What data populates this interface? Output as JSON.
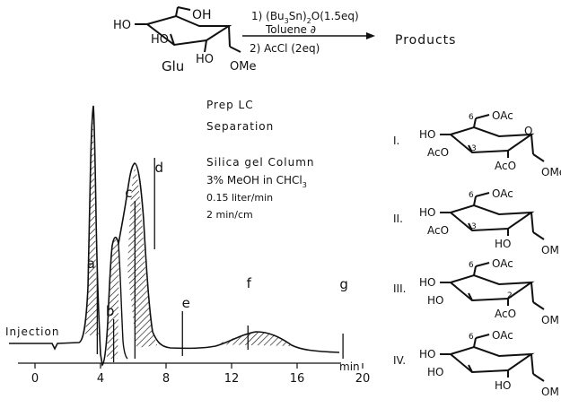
{
  "reaction": {
    "reactant_label": "Glu",
    "reactant_groups": {
      "oh6": "OH",
      "oh4": "HO",
      "oh3": "HO",
      "oh2": "HO",
      "ome": "OMe"
    },
    "step1_prefix": "1) (Bu",
    "step1_sub1": "3",
    "step1_mid": "Sn)",
    "step1_sub2": "2",
    "step1_suffix": "O(1.5eq)",
    "step1_solvent": "Toluene ∂",
    "step2": "2) AcCl (2eq)",
    "products_label": "Products"
  },
  "separation_notes": {
    "line1": "Prep LC",
    "line2": "Separation",
    "line3": "Silica gel Column",
    "line4_prefix": "3% MeOH in CHCl",
    "line4_sub": "3",
    "line5": "0.15 liter/min",
    "line6": "2 min/cm"
  },
  "chromatogram": {
    "injection_label": "Injection",
    "x_unit": "min",
    "x_ticks": [
      "0",
      "4",
      "8",
      "12",
      "16",
      "20"
    ],
    "x_tick_values": [
      0,
      4,
      8,
      12,
      16,
      20
    ],
    "x_range": [
      -2.5,
      22
    ],
    "peak_markers": [
      {
        "label": "a",
        "t": 3.8
      },
      {
        "label": "b",
        "t": 4.8
      },
      {
        "label": "c",
        "t": 6.1
      },
      {
        "label": "d",
        "t": 7.3
      },
      {
        "label": "e",
        "t": 9.0
      },
      {
        "label": "f",
        "t": 13.0
      },
      {
        "label": "g",
        "t": 18.8
      }
    ]
  },
  "products": [
    {
      "numeral": "I.",
      "pos6": "6",
      "oac": "OAc",
      "left1": "HO",
      "left2": "AcO",
      "pos_label": "3",
      "ring_o": "O",
      "right1": "AcO",
      "right1_pos": "",
      "anomeric": "OMe"
    },
    {
      "numeral": "II.",
      "pos6": "6",
      "oac": "OAc",
      "left1": "HO",
      "left2": "AcO",
      "pos_label": "3",
      "ring_o": "",
      "right1": "HO",
      "right1_pos": "",
      "anomeric": "OM"
    },
    {
      "numeral": "III.",
      "pos6": "6",
      "oac": "OAc",
      "left1": "HO",
      "left2": "HO",
      "pos_label": "",
      "ring_o": "",
      "right1": "AcO",
      "right1_pos": "2",
      "anomeric": "OM"
    },
    {
      "numeral": "IV.",
      "pos6": "6",
      "oac": "OAc",
      "left1": "HO",
      "left2": "HO",
      "pos_label": "",
      "ring_o": "",
      "right1": "HO",
      "right1_pos": "",
      "anomeric": "OM"
    }
  ]
}
